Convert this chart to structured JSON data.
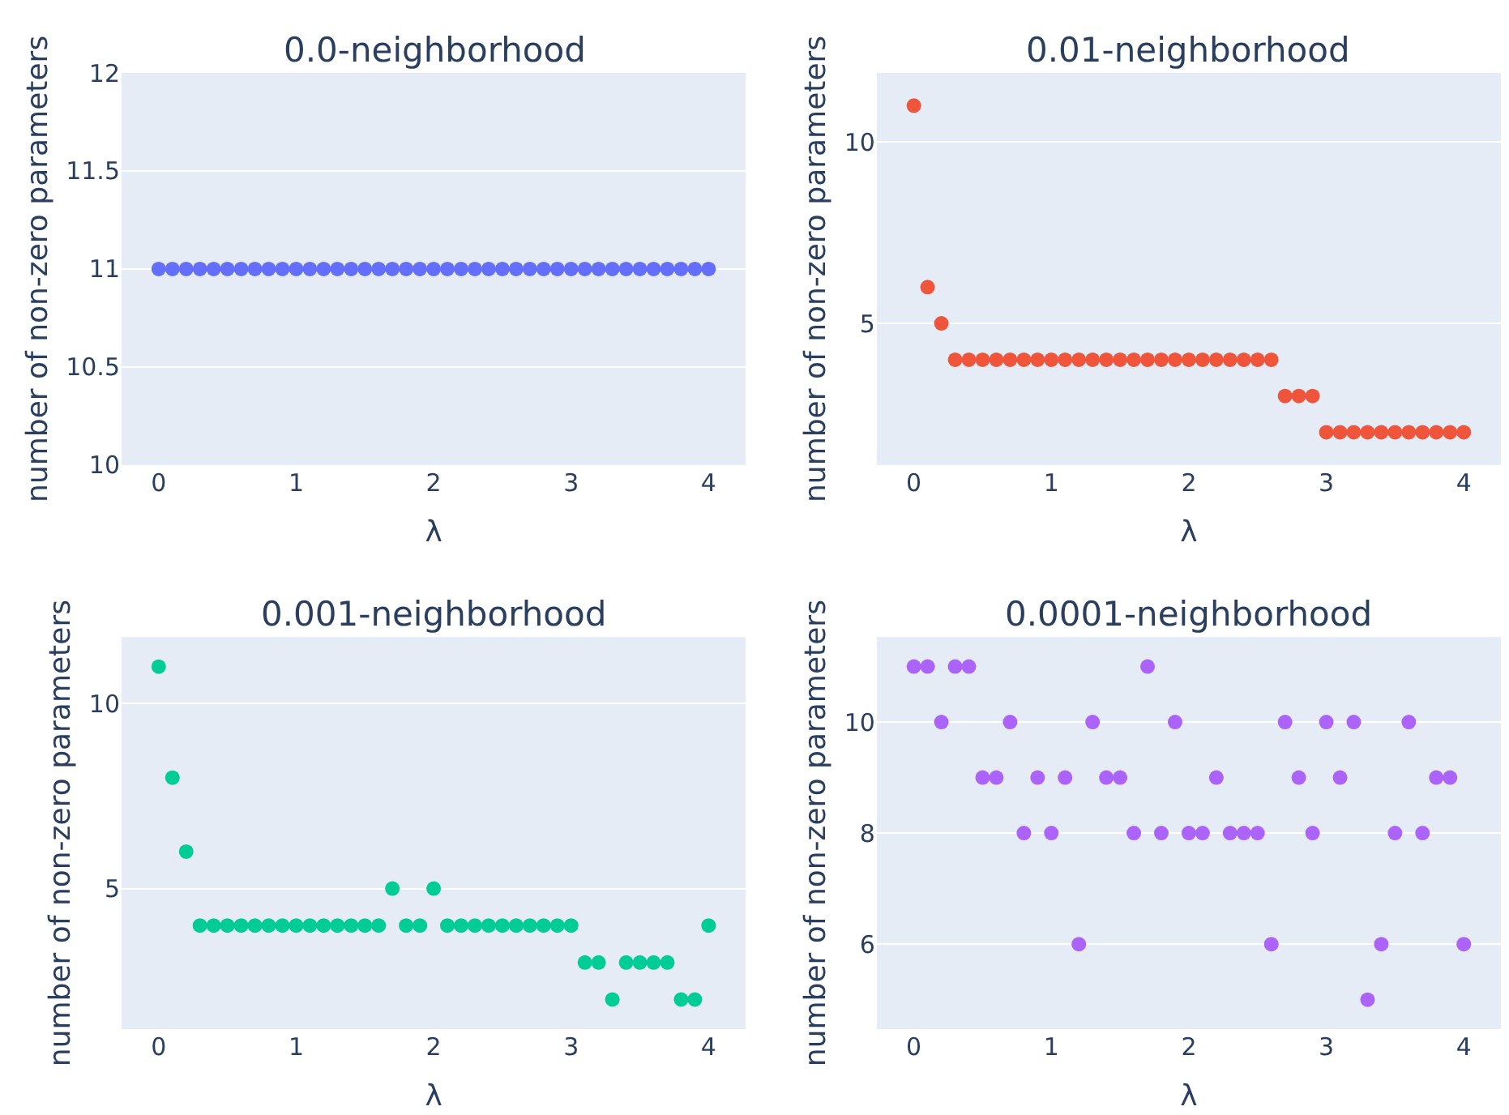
{
  "chart_data": [
    {
      "type": "scatter",
      "title": "0.0-neighborhood",
      "xlabel": "λ",
      "ylabel": "number of non-zero parameters",
      "marker": "circle",
      "grid": "y",
      "x": [
        0,
        0.1,
        0.2,
        0.3,
        0.4,
        0.5,
        0.6,
        0.7,
        0.8,
        0.9,
        1,
        1.1,
        1.2,
        1.3,
        1.4,
        1.5,
        1.6,
        1.7,
        1.8,
        1.9,
        2,
        2.1,
        2.2,
        2.3,
        2.4,
        2.5,
        2.6,
        2.7,
        2.8,
        2.9,
        3,
        3.1,
        3.2,
        3.3,
        3.4,
        3.5,
        3.6,
        3.7,
        3.8,
        3.9,
        4
      ],
      "series": [
        {
          "color": "#636efa",
          "values": [
            11,
            11,
            11,
            11,
            11,
            11,
            11,
            11,
            11,
            11,
            11,
            11,
            11,
            11,
            11,
            11,
            11,
            11,
            11,
            11,
            11,
            11,
            11,
            11,
            11,
            11,
            11,
            11,
            11,
            11,
            11,
            11,
            11,
            11,
            11,
            11,
            11,
            11,
            11,
            11,
            11
          ]
        }
      ],
      "xlim": [
        -0.27,
        4.27
      ],
      "xticks": [
        0,
        1,
        2,
        3,
        4
      ],
      "ylim": [
        10,
        12
      ],
      "yticks": [
        10,
        10.5,
        11,
        11.5,
        12
      ]
    },
    {
      "type": "scatter",
      "title": "0.01-neighborhood",
      "xlabel": "λ",
      "ylabel": "number of non-zero parameters",
      "marker": "circle",
      "grid": "y",
      "x": [
        0,
        0.1,
        0.2,
        0.3,
        0.4,
        0.5,
        0.6,
        0.7,
        0.8,
        0.9,
        1,
        1.1,
        1.2,
        1.3,
        1.4,
        1.5,
        1.6,
        1.7,
        1.8,
        1.9,
        2,
        2.1,
        2.2,
        2.3,
        2.4,
        2.5,
        2.6,
        2.7,
        2.8,
        2.9,
        3,
        3.1,
        3.2,
        3.3,
        3.4,
        3.5,
        3.6,
        3.7,
        3.8,
        3.9,
        4
      ],
      "series": [
        {
          "color": "#ef553b",
          "values": [
            11,
            6,
            5,
            4,
            4,
            4,
            4,
            4,
            4,
            4,
            4,
            4,
            4,
            4,
            4,
            4,
            4,
            4,
            4,
            4,
            4,
            4,
            4,
            4,
            4,
            4,
            4,
            3,
            3,
            3,
            2,
            2,
            2,
            2,
            2,
            2,
            2,
            2,
            2,
            2,
            2
          ]
        }
      ],
      "xlim": [
        -0.27,
        4.27
      ],
      "xticks": [
        0,
        1,
        2,
        3,
        4
      ],
      "ylim": [
        1.1,
        11.9
      ],
      "yticks": [
        5,
        10
      ]
    },
    {
      "type": "scatter",
      "title": "0.001-neighborhood",
      "xlabel": "λ",
      "ylabel": "number of non-zero parameters",
      "marker": "circle",
      "grid": "y",
      "x": [
        0,
        0.1,
        0.2,
        0.3,
        0.4,
        0.5,
        0.6,
        0.7,
        0.8,
        0.9,
        1,
        1.1,
        1.2,
        1.3,
        1.4,
        1.5,
        1.6,
        1.7,
        1.8,
        1.9,
        2,
        2.1,
        2.2,
        2.3,
        2.4,
        2.5,
        2.6,
        2.7,
        2.8,
        2.9,
        3,
        3.1,
        3.2,
        3.3,
        3.4,
        3.5,
        3.6,
        3.7,
        3.8,
        3.9,
        4
      ],
      "series": [
        {
          "color": "#00cc96",
          "values": [
            11,
            8,
            6,
            4,
            4,
            4,
            4,
            4,
            4,
            4,
            4,
            4,
            4,
            4,
            4,
            4,
            4,
            5,
            4,
            4,
            5,
            4,
            4,
            4,
            4,
            4,
            4,
            4,
            4,
            4,
            4,
            3,
            3,
            2,
            3,
            3,
            3,
            3,
            2,
            2,
            4
          ]
        }
      ],
      "xlim": [
        -0.27,
        4.27
      ],
      "xticks": [
        0,
        1,
        2,
        3,
        4
      ],
      "ylim": [
        1.2,
        11.8
      ],
      "yticks": [
        5,
        10
      ]
    },
    {
      "type": "scatter",
      "title": "0.0001-neighborhood",
      "xlabel": "λ",
      "ylabel": "number of non-zero parameters",
      "marker": "circle",
      "grid": "y",
      "x": [
        0,
        0.1,
        0.2,
        0.3,
        0.4,
        0.5,
        0.6,
        0.7,
        0.8,
        0.9,
        1,
        1.1,
        1.2,
        1.3,
        1.4,
        1.5,
        1.6,
        1.7,
        1.8,
        1.9,
        2,
        2.1,
        2.2,
        2.3,
        2.4,
        2.5,
        2.6,
        2.7,
        2.8,
        2.9,
        3,
        3.1,
        3.2,
        3.3,
        3.4,
        3.5,
        3.6,
        3.7,
        3.8,
        3.9,
        4
      ],
      "series": [
        {
          "color": "#ab63fa",
          "values": [
            11,
            11,
            10,
            11,
            11,
            9,
            9,
            10,
            8,
            9,
            8,
            9,
            6,
            10,
            9,
            9,
            8,
            11,
            8,
            10,
            8,
            8,
            9,
            8,
            8,
            8,
            6,
            10,
            9,
            8,
            10,
            9,
            10,
            5,
            6,
            8,
            10,
            8,
            9,
            9,
            6
          ]
        }
      ],
      "xlim": [
        -0.27,
        4.27
      ],
      "xticks": [
        0,
        1,
        2,
        3,
        4
      ],
      "ylim": [
        4.47,
        11.53
      ],
      "yticks": [
        6,
        8,
        10
      ]
    }
  ]
}
